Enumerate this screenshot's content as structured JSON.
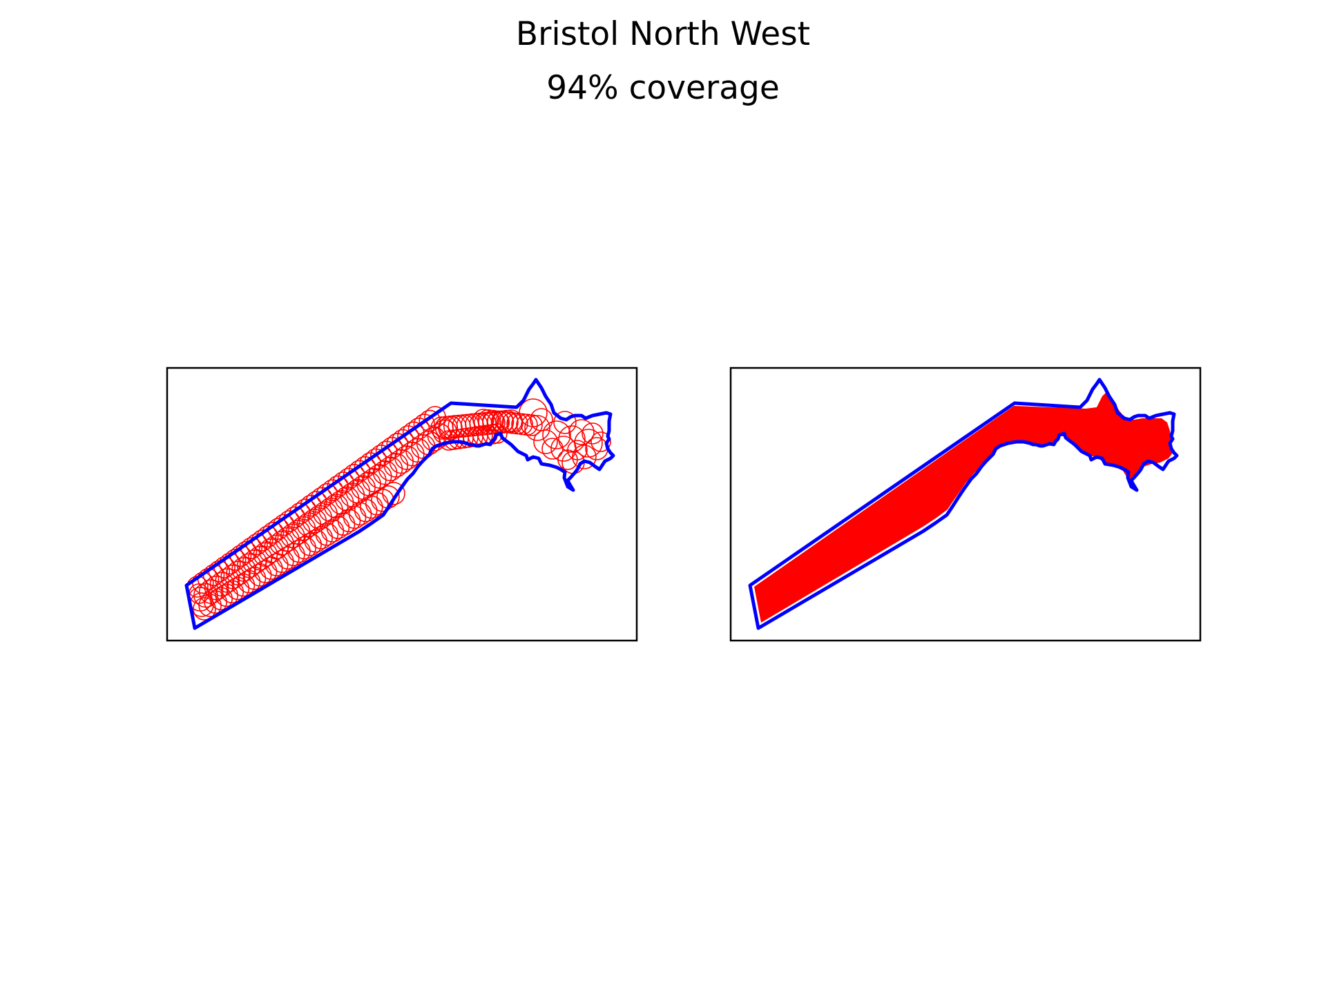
{
  "figure": {
    "title": "Bristol North West",
    "subtitle": "94% coverage"
  },
  "colors": {
    "boundary": "#0000ff",
    "coverage": "#ff0000",
    "frame": "#000000",
    "background": "#ffffff"
  },
  "panels": [
    {
      "name": "circle-coverage",
      "style": "circles-outline"
    },
    {
      "name": "merged-coverage",
      "style": "filled-union"
    }
  ]
}
